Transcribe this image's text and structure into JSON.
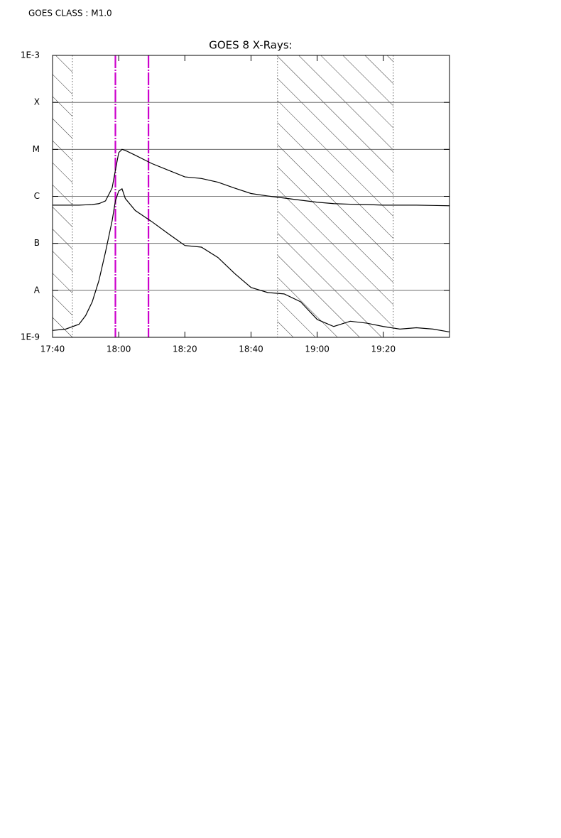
{
  "header": {
    "goes_class": "GOES CLASS : M1.0"
  },
  "chart_data": {
    "type": "line",
    "title": "GOES 8 X-Rays:",
    "y_log_scale": true,
    "grid": true,
    "x": [
      "17:40",
      "17:44",
      "17:48",
      "17:50",
      "17:52",
      "17:54",
      "17:56",
      "17:58",
      "17:59",
      "18:00",
      "18:01",
      "18:02",
      "18:05",
      "18:10",
      "18:15",
      "18:20",
      "18:25",
      "18:30",
      "18:35",
      "18:40",
      "18:45",
      "18:50",
      "18:55",
      "19:00",
      "19:05",
      "19:10",
      "19:15",
      "19:20",
      "19:25",
      "19:30",
      "19:35",
      "19:40"
    ],
    "series": [
      {
        "color": "#000000",
        "values": [
          6.5e-07,
          6.5e-07,
          6.5e-07,
          6.6e-07,
          6.7e-07,
          7e-07,
          8e-07,
          1.5e-06,
          3.6e-06,
          8.5e-06,
          1e-05,
          9.5e-06,
          7.5e-06,
          5e-06,
          3.6e-06,
          2.6e-06,
          2.4e-06,
          2e-06,
          1.5e-06,
          1.15e-06,
          1.02e-06,
          9.2e-07,
          8.3e-07,
          7.5e-07,
          7e-07,
          6.8e-07,
          6.7e-07,
          6.5e-07,
          6.5e-07,
          6.5e-07,
          6.4e-07,
          6.3e-07
        ]
      },
      {
        "color": "#000000",
        "values": [
          1.4e-09,
          1.5e-09,
          1.9e-09,
          2.9e-09,
          5.7e-09,
          1.6e-08,
          6.5e-08,
          3e-07,
          8e-07,
          1.3e-06,
          1.45e-06,
          9e-07,
          5e-07,
          2.9e-07,
          1.6e-07,
          9e-08,
          8.3e-08,
          5e-08,
          2.3e-08,
          1.15e-08,
          9e-09,
          8.4e-09,
          5.7e-09,
          2.4e-09,
          1.7e-09,
          2.2e-09,
          2e-09,
          1.7e-09,
          1.5e-09,
          1.6e-09,
          1.5e-09,
          1.3e-09
        ]
      }
    ],
    "xlim": [
      "17:40",
      "19:40"
    ],
    "xticks": [
      "17:40",
      "18:00",
      "18:20",
      "18:40",
      "19:00",
      "19:20"
    ],
    "ylim": [
      1e-09,
      0.001
    ],
    "yticks": [
      {
        "value": 1e-09,
        "label": "1E-9"
      },
      {
        "value": 1e-08,
        "label": "A"
      },
      {
        "value": 1e-07,
        "label": "B"
      },
      {
        "value": 1e-06,
        "label": "C"
      },
      {
        "value": 1e-05,
        "label": "M"
      },
      {
        "value": 0.0001,
        "label": "X"
      },
      {
        "value": 0.001,
        "label": "1E-3"
      }
    ],
    "hatched_intervals": [
      [
        "17:40",
        "17:46"
      ],
      [
        "18:48",
        "19:23"
      ]
    ],
    "markers": [
      "17:59",
      "18:09"
    ],
    "marker_color": "#cc00cc"
  }
}
